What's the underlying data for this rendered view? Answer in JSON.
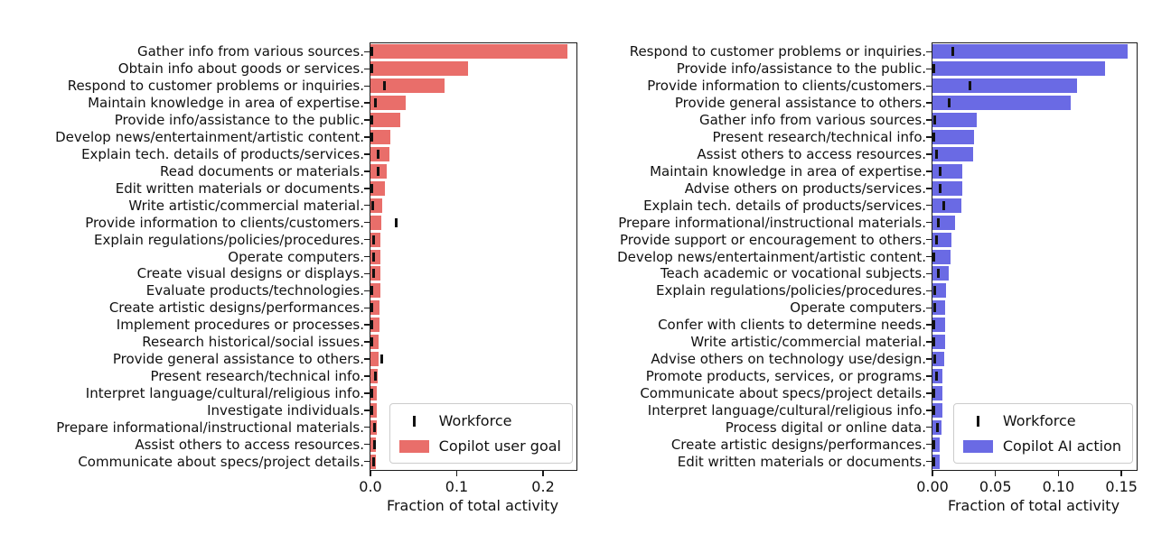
{
  "figure": {
    "background": "#ffffff"
  },
  "chart_data": [
    {
      "name": "copilot-user-goal",
      "type": "bar",
      "orientation": "horizontal",
      "title": "",
      "xlabel": "Fraction of total activity",
      "xlim": [
        0,
        0.2387
      ],
      "xticks": [
        {
          "value": 0.0,
          "label": "0.0"
        },
        {
          "value": 0.1,
          "label": "0.1"
        },
        {
          "value": 0.2,
          "label": "0.2"
        }
      ],
      "bar_color": "#e96e6a",
      "workforce_color": "#111111",
      "legend_position": "lower right",
      "legend": [
        {
          "label": "Workforce",
          "marker": "tick"
        },
        {
          "label": "Copilot user goal",
          "marker": "swatch"
        }
      ],
      "categories": [
        "Gather info from various sources.",
        "Obtain info about goods or services.",
        "Respond to customer problems or inquiries.",
        "Maintain knowledge in area of expertise.",
        "Provide info/assistance to the public.",
        "Develop news/entertainment/artistic content.",
        "Explain tech. details of products/services.",
        "Read documents or materials.",
        "Edit written materials or documents.",
        "Write artistic/commercial material.",
        "Provide information to clients/customers.",
        "Explain regulations/policies/procedures.",
        "Operate computers.",
        "Create visual designs or displays.",
        "Evaluate products/technologies.",
        "Create artistic designs/performances.",
        "Implement procedures or processes.",
        "Research historical/social issues.",
        "Provide general assistance to others.",
        "Present research/technical info.",
        "Interpret language/cultural/religious info.",
        "Investigate individuals.",
        "Prepare informational/instructional materials.",
        "Assist others to access resources.",
        "Communicate about specs/project details."
      ],
      "series": [
        {
          "name": "Copilot user goal",
          "style": "bar",
          "values": [
            0.228,
            0.113,
            0.086,
            0.041,
            0.035,
            0.023,
            0.022,
            0.019,
            0.017,
            0.014,
            0.013,
            0.012,
            0.012,
            0.012,
            0.011,
            0.01,
            0.01,
            0.009,
            0.009,
            0.008,
            0.007,
            0.007,
            0.007,
            0.006,
            0.006
          ]
        },
        {
          "name": "Workforce",
          "style": "tick",
          "values": [
            0.002,
            0.001,
            0.016,
            0.006,
            0.001,
            0.001,
            0.009,
            0.009,
            0.001,
            0.003,
            0.03,
            0.004,
            0.004,
            0.004,
            0.001,
            0.002,
            0.002,
            0.001,
            0.013,
            0.006,
            0.001,
            0.001,
            0.005,
            0.005,
            0.004
          ]
        }
      ]
    },
    {
      "name": "copilot-ai-action",
      "type": "bar",
      "orientation": "horizontal",
      "title": "",
      "xlabel": "Fraction of total activity",
      "xlim": [
        0,
        0.1621
      ],
      "xticks": [
        {
          "value": 0.0,
          "label": "0.00"
        },
        {
          "value": 0.05,
          "label": "0.05"
        },
        {
          "value": 0.1,
          "label": "0.10"
        },
        {
          "value": 0.15,
          "label": "0.15"
        }
      ],
      "bar_color": "#6a6ae4",
      "workforce_color": "#111111",
      "legend_position": "lower right",
      "legend": [
        {
          "label": "Workforce",
          "marker": "tick"
        },
        {
          "label": "Copilot AI action",
          "marker": "swatch"
        }
      ],
      "categories": [
        "Respond to customer problems or inquiries.",
        "Provide info/assistance to the public.",
        "Provide information to clients/customers.",
        "Provide general assistance to others.",
        "Gather info from various sources.",
        "Present research/technical info.",
        "Assist others to access resources.",
        "Maintain knowledge in area of expertise.",
        "Advise others on products/services.",
        "Explain tech. details of products/services.",
        "Prepare informational/instructional materials.",
        "Provide support or encouragement to others.",
        "Develop news/entertainment/artistic content.",
        "Teach academic or vocational subjects.",
        "Explain regulations/policies/procedures.",
        "Operate computers.",
        "Confer with clients to determine needs.",
        "Write artistic/commercial material.",
        "Advise others on technology use/design.",
        "Promote products, services, or programs.",
        "Communicate about specs/project details.",
        "Interpret language/cultural/religious info.",
        "Process digital or online data.",
        "Create artistic designs/performances.",
        "Edit written materials or documents."
      ],
      "series": [
        {
          "name": "Copilot AI action",
          "style": "bar",
          "values": [
            0.155,
            0.137,
            0.115,
            0.11,
            0.035,
            0.033,
            0.032,
            0.024,
            0.024,
            0.023,
            0.018,
            0.015,
            0.014,
            0.013,
            0.011,
            0.01,
            0.01,
            0.01,
            0.009,
            0.008,
            0.008,
            0.008,
            0.007,
            0.006,
            0.006
          ]
        },
        {
          "name": "Workforce",
          "style": "tick",
          "values": [
            0.016,
            0.001,
            0.03,
            0.013,
            0.002,
            0.001,
            0.003,
            0.006,
            0.006,
            0.009,
            0.005,
            0.003,
            0.001,
            0.005,
            0.002,
            0.002,
            0.001,
            0.001,
            0.002,
            0.003,
            0.001,
            0.001,
            0.004,
            0.001,
            0.001
          ]
        }
      ]
    }
  ]
}
